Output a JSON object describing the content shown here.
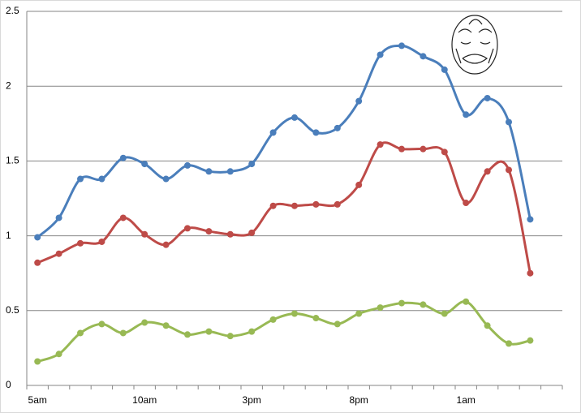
{
  "chart_data": {
    "type": "line",
    "categories": [
      "5am",
      null,
      null,
      null,
      null,
      "10am",
      null,
      null,
      null,
      null,
      "3pm",
      null,
      null,
      null,
      null,
      "8pm",
      null,
      null,
      null,
      null,
      "1am",
      null,
      null,
      null,
      null
    ],
    "series": [
      {
        "color": "#4a7ebb",
        "values": [
          0.99,
          1.12,
          1.38,
          1.38,
          1.52,
          1.48,
          1.38,
          1.47,
          1.43,
          1.43,
          1.48,
          1.69,
          1.79,
          1.69,
          1.72,
          1.9,
          2.21,
          2.27,
          2.2,
          2.11,
          1.81,
          1.92,
          1.76,
          1.11,
          null
        ]
      },
      {
        "color": "#be4b48",
        "values": [
          0.82,
          0.88,
          0.95,
          0.96,
          1.12,
          1.01,
          0.94,
          1.05,
          1.03,
          1.01,
          1.02,
          1.2,
          1.2,
          1.21,
          1.21,
          1.34,
          1.61,
          1.58,
          1.58,
          1.56,
          1.22,
          1.43,
          1.44,
          0.75,
          null
        ]
      },
      {
        "color": "#98b954",
        "values": [
          0.16,
          0.21,
          0.35,
          0.41,
          0.35,
          0.42,
          0.4,
          0.34,
          0.36,
          0.33,
          0.36,
          0.44,
          0.48,
          0.45,
          0.41,
          0.48,
          0.52,
          0.55,
          0.54,
          0.48,
          0.56,
          0.4,
          0.28,
          0.3,
          null
        ]
      }
    ],
    "ylim": [
      0,
      2.5
    ],
    "yticks": [
      0,
      0.5,
      1,
      1.5,
      2,
      2.5
    ],
    "grid": true
  }
}
